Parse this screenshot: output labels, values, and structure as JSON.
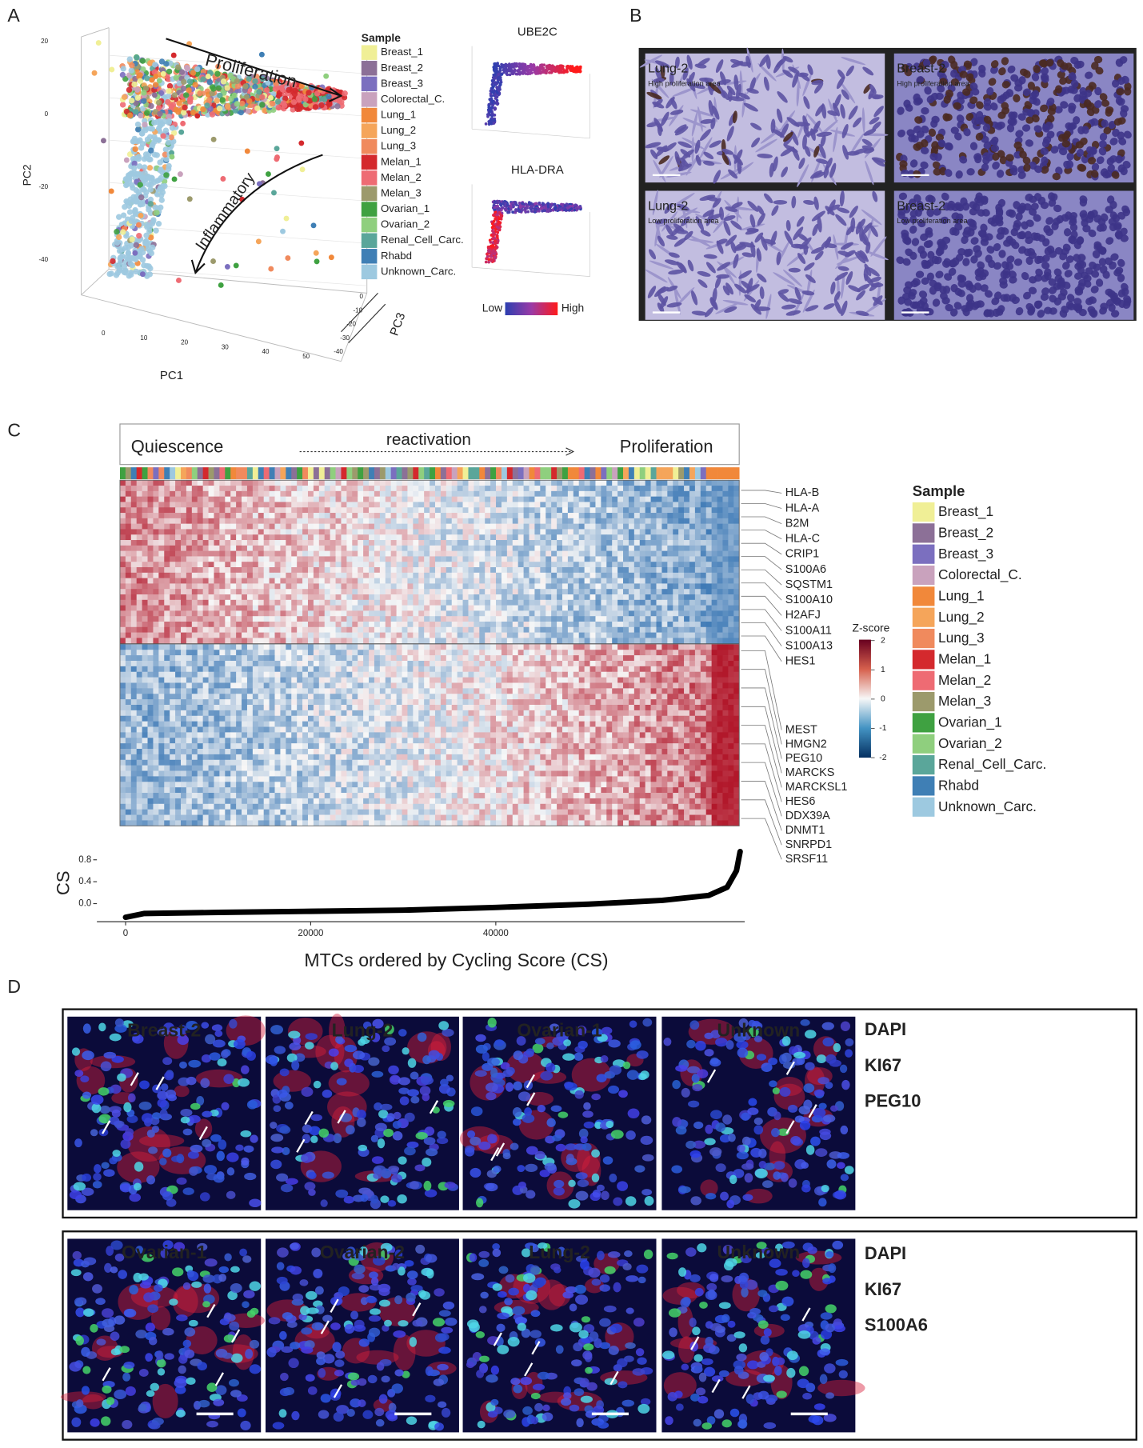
{
  "panel_a": {
    "label": "A",
    "pc2_label": "PC2",
    "pc2_ticks": [
      20,
      0,
      -20,
      -40
    ],
    "pc1_label": "PC1",
    "pc1_ticks": [
      0,
      10,
      20,
      30,
      40,
      50
    ],
    "pc3_label": "PC3",
    "pc3_ticks": [
      0,
      -10,
      -20,
      -30,
      -40
    ],
    "annotation_top": "Proliferation",
    "annotation_bottom": "Inflammatory",
    "insets": [
      "UBE2C",
      "HLA-DRA"
    ],
    "colorbar_low": "Low",
    "colorbar_high": "High"
  },
  "legend": {
    "title": "Sample",
    "entries": [
      {
        "name": "Breast_1",
        "color": "#f0ef96"
      },
      {
        "name": "Breast_2",
        "color": "#8c7097"
      },
      {
        "name": "Breast_3",
        "color": "#7b6fbf"
      },
      {
        "name": "Colorectal_C.",
        "color": "#c9a2bd"
      },
      {
        "name": "Lung_1",
        "color": "#f1883a"
      },
      {
        "name": "Lung_2",
        "color": "#f5a55a"
      },
      {
        "name": "Lung_3",
        "color": "#f08a5d"
      },
      {
        "name": "Melan_1",
        "color": "#d4292d"
      },
      {
        "name": "Melan_2",
        "color": "#ee6b73"
      },
      {
        "name": "Melan_3",
        "color": "#9c9a6c"
      },
      {
        "name": "Ovarian_1",
        "color": "#3fa141"
      },
      {
        "name": "Ovarian_2",
        "color": "#8fcf7e"
      },
      {
        "name": "Renal_Cell_Carc.",
        "color": "#5aa69a"
      },
      {
        "name": "Rhabd",
        "color": "#3f7fb5"
      },
      {
        "name": "Unknown_Carc.",
        "color": "#9dc9e0"
      }
    ]
  },
  "panel_b": {
    "label": "B",
    "images": [
      {
        "sample": "Lung-2",
        "area": "High proliferation area"
      },
      {
        "sample": "Breast-2",
        "area": "High proliferation area"
      },
      {
        "sample": "Lung-2",
        "area": "Low proliferation area"
      },
      {
        "sample": "Breast-2",
        "area": "Low proliferation area"
      }
    ]
  },
  "panel_c": {
    "label": "C",
    "header": [
      "Quiescence",
      "reactivation",
      "Proliferation"
    ],
    "genes_top": [
      "HLA-B",
      "HLA-A",
      "B2M",
      "HLA-C",
      "CRIP1",
      "S100A6",
      "SQSTM1",
      "S100A10",
      "H2AFJ",
      "S100A11",
      "S100A13",
      "HES1"
    ],
    "genes_bottom": [
      "MEST",
      "HMGN2",
      "PEG10",
      "MARCKS",
      "MARCKSL1",
      "HES6",
      "DDX39A",
      "DNMT1",
      "SNRPD1",
      "SRSF11"
    ],
    "zscore_title": "Z-score",
    "zscore_ticks": [
      2,
      1,
      0,
      -1,
      -2
    ],
    "cs_plot": {
      "type": "line",
      "ylabel": "CS",
      "xlabel": "MTCs ordered by Cycling Score (CS)",
      "x": [
        0,
        2000,
        10000,
        20000,
        30000,
        40000,
        50000,
        58000,
        63000,
        65000,
        66000,
        66400
      ],
      "values": [
        -0.25,
        -0.18,
        -0.16,
        -0.14,
        -0.12,
        -0.07,
        -0.01,
        0.06,
        0.15,
        0.3,
        0.6,
        0.95
      ],
      "color": "#000000",
      "xlim": [
        -3100,
        66900
      ],
      "ylim": [
        -0.33,
        1.1
      ],
      "xticks": [
        0,
        20000,
        40000
      ],
      "yticks": [
        {
          "value": 0,
          "label": "0.0"
        },
        0.4,
        0.8
      ]
    }
  },
  "panel_d": {
    "label": "D",
    "rows": [
      {
        "titles": [
          "Breast-2",
          "Lung-2",
          "Ovarian-1",
          "Unknown"
        ],
        "stains": [
          "DAPI",
          "KI67",
          "PEG10"
        ]
      },
      {
        "titles": [
          "Ovarian-1",
          "Ovarian-2",
          "Lung-2",
          "Unknown"
        ],
        "stains": [
          "DAPI",
          "KI67",
          "S100A6"
        ]
      }
    ]
  }
}
